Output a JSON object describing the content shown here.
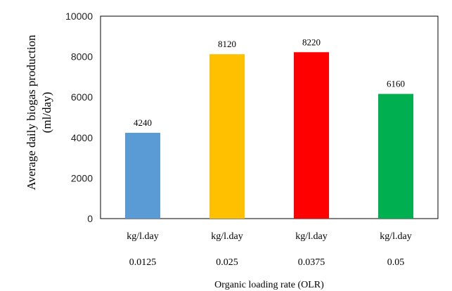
{
  "chart_data": {
    "type": "bar",
    "categories": [
      {
        "unit": "kg/l.day",
        "value": "0.0125"
      },
      {
        "unit": "kg/l.day",
        "value": "0.025"
      },
      {
        "unit": "kg/l.day",
        "value": "0.0375"
      },
      {
        "unit": "kg/l.day",
        "value": "0.05"
      }
    ],
    "values": [
      4240,
      8120,
      8220,
      6160
    ],
    "data_labels": [
      "4240",
      "8120",
      "8220",
      "6160"
    ],
    "bar_colors": [
      "#5b9bd5",
      "#ffc000",
      "#ff0000",
      "#00b050"
    ],
    "title": "",
    "xlabel": "Organic loading rate (OLR)",
    "ylabel_line1": "Average daily biogas production",
    "ylabel_line2": "(ml/day)",
    "ylim": [
      0,
      10000
    ],
    "yticks": [
      "0",
      "2000",
      "4000",
      "6000",
      "8000",
      "10000"
    ],
    "grid": false,
    "legend": "none"
  }
}
